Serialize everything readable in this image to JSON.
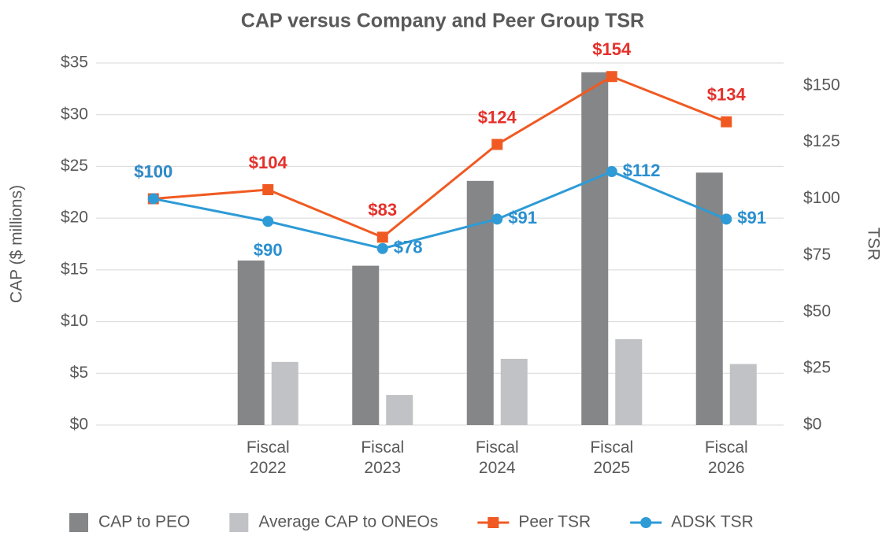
{
  "chart_data": {
    "type": "bar-line",
    "title": "CAP versus Company and Peer Group TSR",
    "y_label": "CAP ($ millions)",
    "y2_label": "TSR",
    "categories": [
      null,
      "Fiscal 2022",
      "Fiscal 2023",
      "Fiscal 2024",
      "Fiscal 2025",
      "Fiscal 2026"
    ],
    "series": [
      {
        "name": "CAP to PEO",
        "type": "bar",
        "color": "#858688",
        "values": [
          null,
          15.9,
          15.4,
          23.6,
          34.1,
          24.4
        ]
      },
      {
        "name": "Average CAP to ONEOs",
        "type": "bar",
        "color": "#c1c2c5",
        "values": [
          null,
          6.1,
          2.9,
          6.4,
          8.3,
          5.9
        ]
      },
      {
        "name": "Peer TSR",
        "type": "line",
        "axis": "y2",
        "color": "#f05a22",
        "label_color": "#e5302a",
        "values": [
          100,
          104,
          83,
          124,
          154,
          134
        ],
        "value_labels": [
          "$100",
          "$104",
          "$83",
          "$124",
          "$154",
          "$134"
        ]
      },
      {
        "name": "ADSK TSR",
        "type": "line",
        "axis": "y2",
        "color": "#2e9bd6",
        "label_color": "#2a8fcf",
        "values": [
          100,
          90,
          78,
          91,
          112,
          91
        ],
        "value_labels": [
          "$100",
          "$90",
          "$78",
          "$91",
          "$112",
          "$91"
        ]
      }
    ],
    "ylim": [
      0,
      35
    ],
    "yticks": [
      {
        "value": 0,
        "label": "$0"
      },
      {
        "value": 5,
        "label": "$5"
      },
      {
        "value": 10,
        "label": "$10"
      },
      {
        "value": 15,
        "label": "$15"
      },
      {
        "value": 20,
        "label": "$20"
      },
      {
        "value": 25,
        "label": "$25"
      },
      {
        "value": 30,
        "label": "$30"
      },
      {
        "value": 35,
        "label": "$35"
      }
    ],
    "y2lim": [
      0,
      160
    ],
    "y2ticks": [
      {
        "value": 0,
        "label": "$0"
      },
      {
        "value": 25,
        "label": "$25"
      },
      {
        "value": 50,
        "label": "$50"
      },
      {
        "value": 75,
        "label": "$75"
      },
      {
        "value": 100,
        "label": "$100"
      },
      {
        "value": 125,
        "label": "$125"
      },
      {
        "value": 150,
        "label": "$150"
      }
    ],
    "grid": true,
    "legend": "bottom"
  }
}
